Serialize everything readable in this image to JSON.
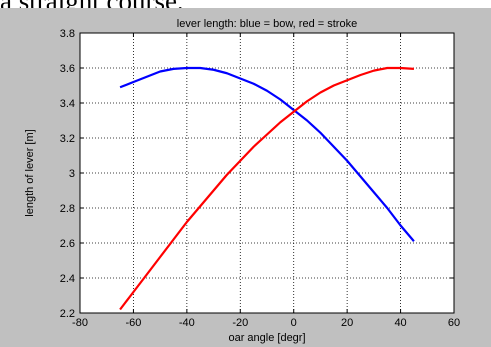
{
  "caption": "a straight course.",
  "chart_data": {
    "type": "line",
    "title": "lever length:  blue = bow, red = stroke",
    "xlabel": "oar angle [degr]",
    "ylabel": "length of lever [m]",
    "xlim": [
      -80,
      60
    ],
    "ylim": [
      2.2,
      3.8
    ],
    "xticks": [
      -80,
      -60,
      -40,
      -20,
      0,
      20,
      40,
      60
    ],
    "yticks": [
      2.2,
      2.4,
      2.6,
      2.8,
      3.0,
      3.2,
      3.4,
      3.6,
      3.8
    ],
    "xtick_labels": [
      "-80",
      "-60",
      "-40",
      "-20",
      "0",
      "20",
      "40",
      "60"
    ],
    "ytick_labels": [
      "2.2",
      "2.4",
      "2.6",
      "2.8",
      "3",
      "3.2",
      "3.4",
      "3.6",
      "3.8"
    ],
    "grid": true,
    "series": [
      {
        "name": "bow",
        "color": "#0000ff",
        "x": [
          -65,
          -60,
          -55,
          -50,
          -45,
          -40,
          -35,
          -30,
          -25,
          -20,
          -15,
          -10,
          -5,
          0,
          5,
          10,
          15,
          20,
          25,
          30,
          35,
          40,
          45
        ],
        "y": [
          3.49,
          3.52,
          3.55,
          3.58,
          3.595,
          3.6,
          3.6,
          3.59,
          3.57,
          3.54,
          3.51,
          3.47,
          3.42,
          3.36,
          3.3,
          3.23,
          3.15,
          3.07,
          2.98,
          2.89,
          2.8,
          2.7,
          2.61
        ]
      },
      {
        "name": "stroke",
        "color": "#ff0000",
        "x": [
          -65,
          -60,
          -55,
          -50,
          -45,
          -40,
          -35,
          -30,
          -25,
          -20,
          -15,
          -10,
          -5,
          0,
          5,
          10,
          15,
          20,
          25,
          30,
          35,
          40,
          45
        ],
        "y": [
          2.22,
          2.32,
          2.42,
          2.52,
          2.62,
          2.72,
          2.81,
          2.9,
          2.99,
          3.07,
          3.15,
          3.22,
          3.29,
          3.35,
          3.41,
          3.46,
          3.5,
          3.53,
          3.56,
          3.585,
          3.6,
          3.6,
          3.595
        ]
      }
    ]
  }
}
